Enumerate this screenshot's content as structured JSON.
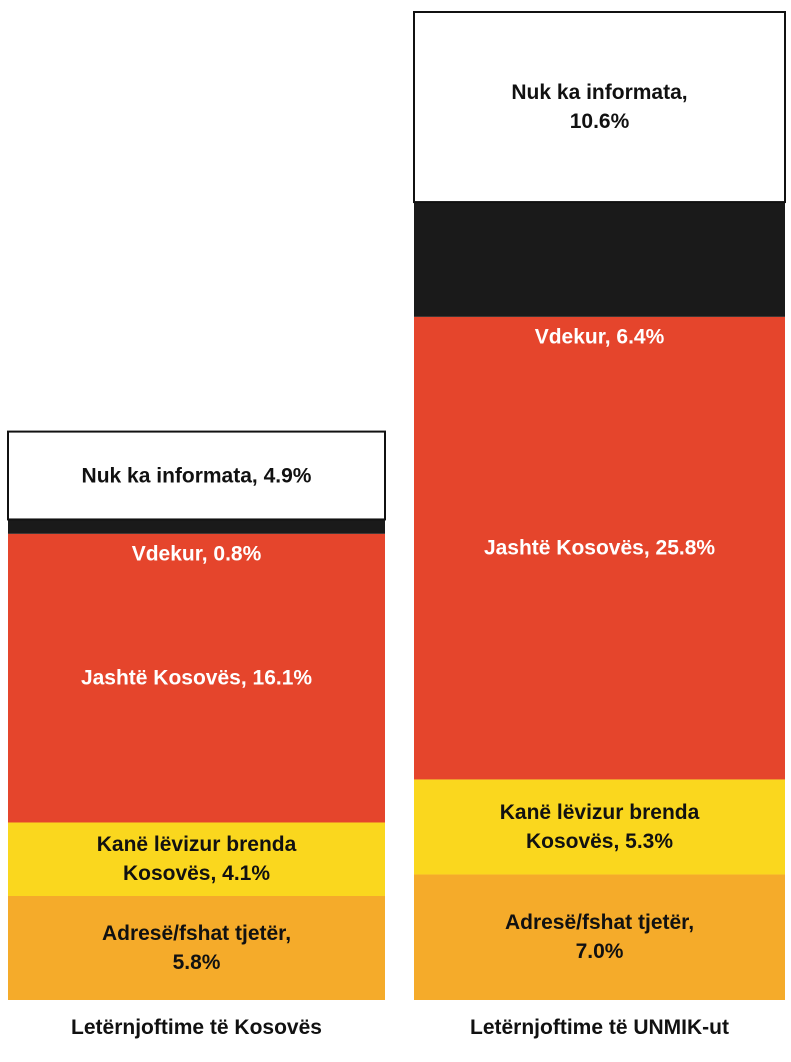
{
  "chart_data": {
    "type": "stacked_bar",
    "categories": [
      "Letërnjoftime të Kosovës",
      "Letërnjoftime të UNMIK-ut"
    ],
    "series": [
      {
        "name": "Adresë/fshat tjetër",
        "color": "#f5ab2a",
        "values": [
          5.8,
          7.0
        ],
        "value_labels": [
          "Adresë/fshat tjetër,\n5.8%",
          "Adresë/fshat tjetër,\n7.0%"
        ]
      },
      {
        "name": "Kanë lëvizur brenda Kosovës",
        "color": "#fad71e",
        "values": [
          4.1,
          5.3
        ],
        "value_labels": [
          "Kanë lëvizur brenda\nKosovës, 4.1%",
          "Kanë lëvizur brenda\nKosovës, 5.3%"
        ]
      },
      {
        "name": "Jashtë Kosovës",
        "color": "#e5452c",
        "values": [
          16.1,
          25.8
        ],
        "value_labels": [
          "Jashtë Kosovës, 16.1%",
          "Jashtë Kosovës, 25.8%"
        ]
      },
      {
        "name": "Vdekur",
        "color": "#1a1a1a",
        "values": [
          0.8,
          6.4
        ],
        "value_labels": [
          "Vdekur, 0.8%",
          "Vdekur, 6.4%"
        ]
      },
      {
        "name": "Nuk ka informata",
        "color": "#ffffff",
        "values": [
          4.9,
          10.6
        ],
        "value_labels": [
          "Nuk ka informata, 4.9%",
          "Nuk ka informata,\n10.6%"
        ]
      }
    ]
  }
}
